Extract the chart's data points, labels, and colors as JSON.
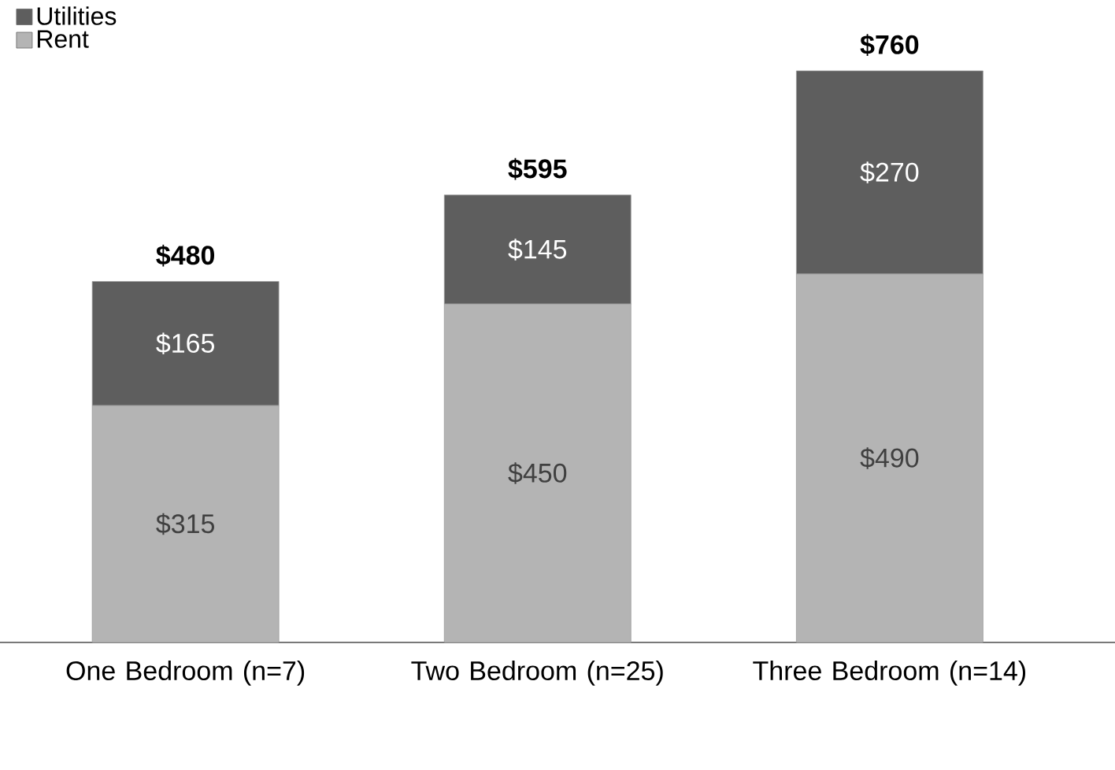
{
  "chart_data": {
    "type": "bar",
    "stacked": true,
    "legend": "top left",
    "categories": [
      "One Bedroom (n=7)",
      "Two Bedroom (n=25)",
      "Three Bedroom (n=14)"
    ],
    "series": [
      {
        "name": "Rent",
        "color": "#b4b4b4",
        "values": [
          315,
          450,
          490
        ],
        "value_labels": [
          "$315",
          "$450",
          "$490"
        ]
      },
      {
        "name": "Utilities",
        "color": "#5e5e5e",
        "values": [
          165,
          145,
          270
        ],
        "value_labels": [
          "$165",
          "$145",
          "$270"
        ]
      }
    ],
    "totals": [
      "$480",
      "$595",
      "$760"
    ]
  }
}
